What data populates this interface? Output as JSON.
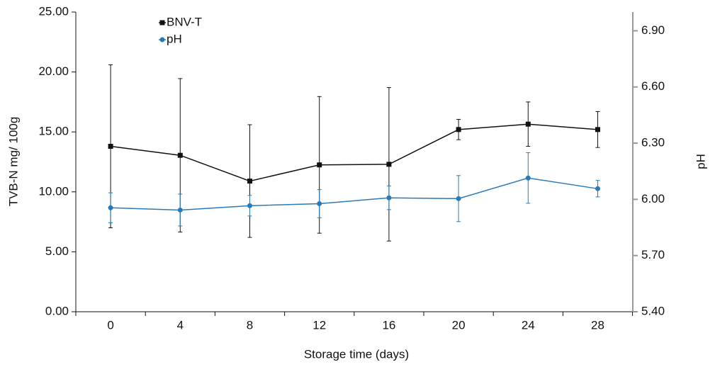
{
  "chart_data": {
    "type": "line",
    "x_label": "Storage time (days)",
    "y_label": "TVB-N mg/ 100g",
    "y2_label": "pH",
    "categories": [
      "0",
      "4",
      "8",
      "12",
      "16",
      "20",
      "24",
      "28"
    ],
    "series": [
      {
        "name": "BNV-T",
        "color": "#111111",
        "marker": "square",
        "values": [
          13.8,
          13.05,
          10.9,
          12.25,
          12.3,
          15.2,
          15.65,
          15.2
        ],
        "errors": [
          6.8,
          6.4,
          4.7,
          5.7,
          6.4,
          0.85,
          1.85,
          1.5
        ]
      },
      {
        "name": "pH",
        "color": "#2a7ab9",
        "marker": "circle",
        "axis": "y2",
        "values": [
          5.955,
          5.943,
          5.966,
          5.977,
          6.008,
          6.004,
          6.114,
          6.057
        ],
        "errors": [
          0.08,
          0.085,
          0.055,
          0.075,
          0.063,
          0.123,
          0.135,
          0.044
        ]
      }
    ],
    "ylim": [
      0,
      25
    ],
    "yticks": [
      {
        "value": 0,
        "label": "0.00"
      },
      {
        "value": 5,
        "label": "5.00"
      },
      {
        "value": 10,
        "label": "10.00"
      },
      {
        "value": 15,
        "label": "15.00"
      },
      {
        "value": 20,
        "label": "20.00"
      },
      {
        "value": 25,
        "label": "25.00"
      }
    ],
    "y2lim": [
      5.4,
      7.0
    ],
    "y2ticks": [
      {
        "value": 5.4,
        "label": "5.40"
      },
      {
        "value": 5.7,
        "label": "5.70"
      },
      {
        "value": 6.0,
        "label": "6.00"
      },
      {
        "value": 6.3,
        "label": "6.30"
      },
      {
        "value": 6.6,
        "label": "6.60"
      },
      {
        "value": 6.9,
        "label": "6.90"
      }
    ],
    "grid": false
  }
}
